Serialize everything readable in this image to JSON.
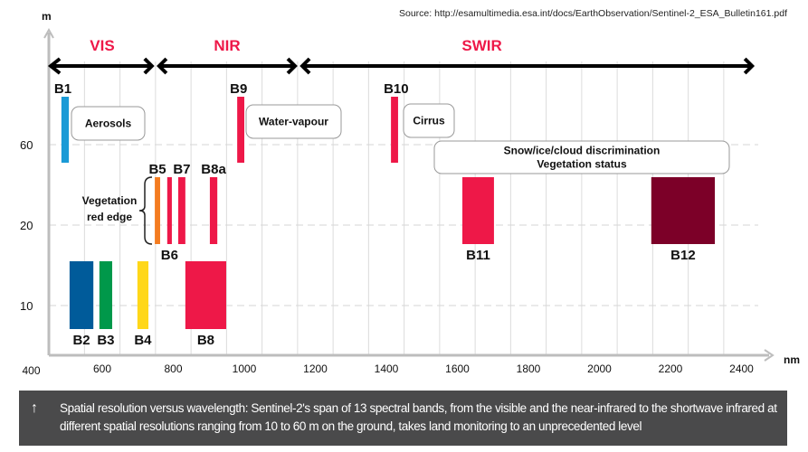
{
  "source": "Source: http://esamultimedia.esa.int/docs/EarthObservation/Sentinel-2_ESA_Bulletin161.pdf",
  "caption": {
    "icon": "arrow-up-icon",
    "text": "Spatial resolution versus wavelength: Sentinel-2's span of 13 spectral bands, from the visible and the near-infrared to the shortwave infrared at different spatial resolutions ranging from 10 to 60 m on the ground, takes land monitoring to an unprecedented level"
  },
  "chart_data": {
    "type": "bar",
    "ylabel": "m",
    "xlabel": "nm",
    "y_categories": [
      "60",
      "20",
      "10"
    ],
    "x_ticks": [
      400,
      600,
      800,
      1000,
      1200,
      1400,
      1600,
      1800,
      2000,
      2200,
      2400
    ],
    "xlim": [
      450,
      2440
    ],
    "grid": true,
    "regions": [
      {
        "label": "VIS",
        "start": 450,
        "end": 750
      },
      {
        "label": "NIR",
        "start": 750,
        "end": 1153
      },
      {
        "label": "SWIR",
        "start": 1153,
        "end": 2440
      }
    ],
    "bands": [
      {
        "name": "B1",
        "resolution": "60",
        "start": 485,
        "end": 506,
        "color": "#1a9ad6"
      },
      {
        "name": "B2",
        "resolution": "10",
        "start": 508,
        "end": 575,
        "color": "#005b9a"
      },
      {
        "name": "B3",
        "resolution": "10",
        "start": 592,
        "end": 628,
        "color": "#00984a"
      },
      {
        "name": "B4",
        "resolution": "10",
        "start": 699,
        "end": 730,
        "color": "#ffd719"
      },
      {
        "name": "B5",
        "resolution": "20",
        "start": 748,
        "end": 763,
        "color": "#f47c20"
      },
      {
        "name": "B6",
        "resolution": "20",
        "start": 783,
        "end": 796,
        "color": "#ee1848"
      },
      {
        "name": "B7",
        "resolution": "20",
        "start": 814,
        "end": 834,
        "color": "#ee1848"
      },
      {
        "name": "B8",
        "resolution": "10",
        "start": 834,
        "end": 949,
        "color": "#ee1848"
      },
      {
        "name": "B8a",
        "resolution": "20",
        "start": 903,
        "end": 924,
        "color": "#ee1848"
      },
      {
        "name": "B9",
        "resolution": "60",
        "start": 980,
        "end": 1000,
        "color": "#ee1848"
      },
      {
        "name": "B10",
        "resolution": "60",
        "start": 1413,
        "end": 1433,
        "color": "#ee1848"
      },
      {
        "name": "B11",
        "resolution": "20",
        "start": 1614,
        "end": 1703,
        "color": "#ee1848"
      },
      {
        "name": "B12",
        "resolution": "20",
        "start": 2146,
        "end": 2325,
        "color": "#7c0028"
      }
    ],
    "annotations": [
      {
        "text": [
          "Aerosols"
        ],
        "bands": [
          "B1"
        ]
      },
      {
        "text": [
          "Water-vapour"
        ],
        "bands": [
          "B9"
        ]
      },
      {
        "text": [
          "Cirrus"
        ],
        "bands": [
          "B10"
        ]
      },
      {
        "text": [
          "Snow/ice/cloud discrimination",
          "Vegetation status"
        ],
        "bands": [
          "B11",
          "B12"
        ]
      },
      {
        "text": [
          "Vegetation",
          "red edge"
        ],
        "bands": [
          "B5",
          "B6",
          "B7"
        ],
        "style": "brace"
      }
    ],
    "region_color": "#ee1848"
  }
}
